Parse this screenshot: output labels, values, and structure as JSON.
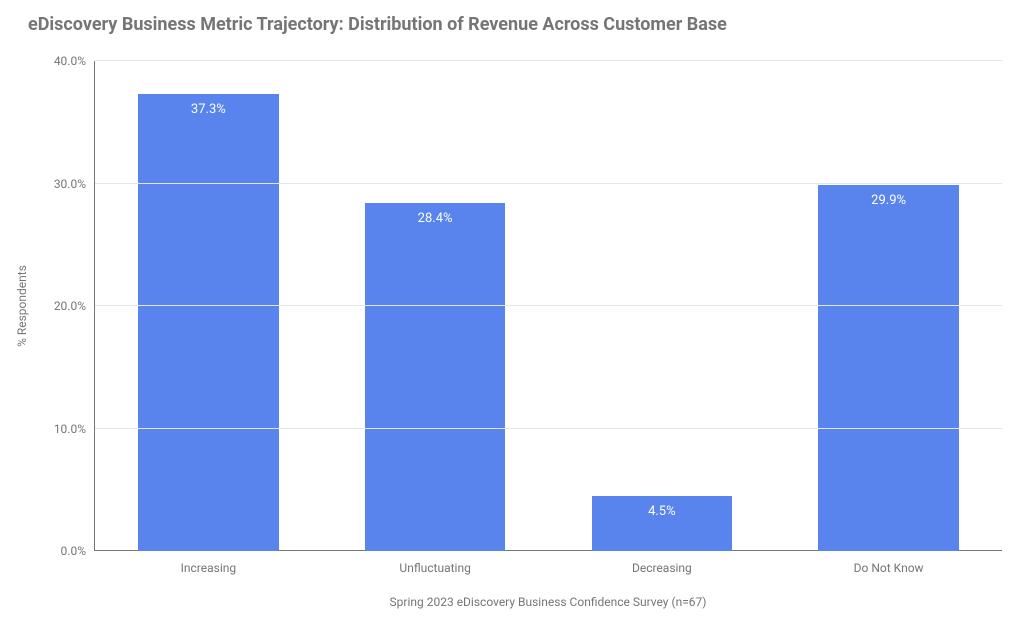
{
  "chart": {
    "type": "bar",
    "title": "eDiscovery Business Metric Trajectory: Distribution of Revenue Across Customer Base",
    "title_color": "#757575",
    "title_fontsize": 18,
    "title_fontweight": 700,
    "y_axis_label": "% Respondents",
    "x_axis_caption": "Spring 2023 eDiscovery Business Confidence Survey (n=67)",
    "label_fontsize": 12,
    "label_color": "#757575",
    "background_color": "#ffffff",
    "grid_color": "#e6e6e6",
    "axis_line_color": "#757575",
    "bar_color": "#5984ee",
    "bar_width_pct": 62,
    "value_label_color": "#ffffff",
    "value_label_fontsize": 13,
    "ylim": [
      0.0,
      40.0
    ],
    "ytick_step": 10.0,
    "y_ticks": [
      {
        "value": 0.0,
        "label": "0.0%"
      },
      {
        "value": 10.0,
        "label": "10.0%"
      },
      {
        "value": 20.0,
        "label": "20.0%"
      },
      {
        "value": 30.0,
        "label": "30.0%"
      },
      {
        "value": 40.0,
        "label": "40.0%"
      }
    ],
    "categories": [
      "Increasing",
      "Unfluctuating",
      "Decreasing",
      "Do Not Know"
    ],
    "values": [
      37.3,
      28.4,
      4.5,
      29.9
    ],
    "value_labels": [
      "37.3%",
      "28.4%",
      "4.5%",
      "29.9%"
    ]
  }
}
